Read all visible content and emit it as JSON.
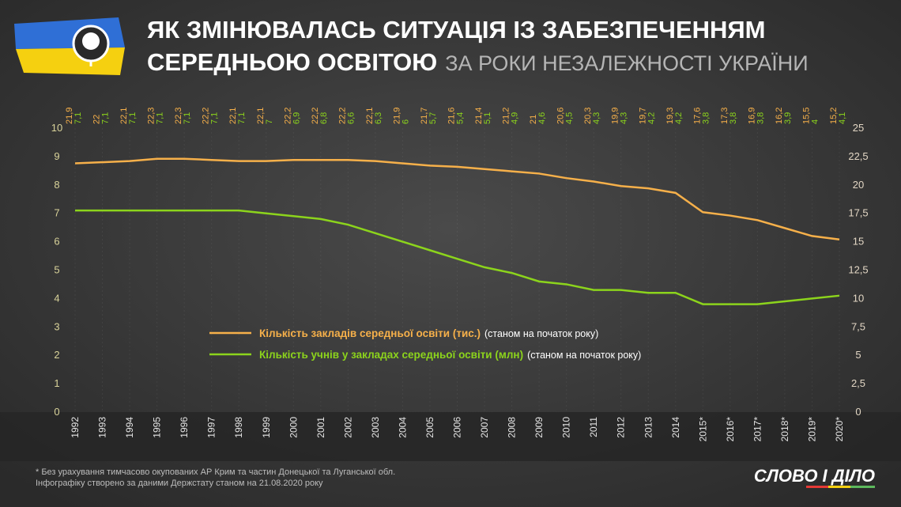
{
  "chart_data": {
    "type": "line",
    "title_lines": [
      "ЯК ЗМІНЮВАЛАСЬ СИТУАЦІЯ ІЗ ЗАБЕЗПЕЧЕННЯМ",
      "СЕРЕДНЬОЮ ОСВІТОЮ"
    ],
    "subtitle": "ЗА РОКИ НЕЗАЛЕЖНОСТІ УКРАЇНИ",
    "categories": [
      "1992",
      "1993",
      "1994",
      "1995",
      "1996",
      "1997",
      "1998",
      "1999",
      "2000",
      "2001",
      "2002",
      "2003",
      "2004",
      "2005",
      "2006",
      "2007",
      "2008",
      "2009",
      "2010",
      "2011",
      "2012",
      "2013",
      "2014",
      "2015*",
      "2016*",
      "2017*",
      "2018*",
      "2019*",
      "2020*"
    ],
    "series": [
      {
        "name": "Кількість закладів середньої освіти (тис.)",
        "note": "(станом на початок року)",
        "color": "#f6b04a",
        "axis": "y2",
        "values": [
          21.9,
          22,
          22.1,
          22.3,
          22.3,
          22.2,
          22.1,
          22.1,
          22.2,
          22.2,
          22.2,
          22.1,
          21.9,
          21.7,
          21.6,
          21.4,
          21.2,
          21,
          20.6,
          20.3,
          19.9,
          19.7,
          19.3,
          17.6,
          17.3,
          16.9,
          16.2,
          15.5,
          15.2
        ],
        "value_labels": [
          "21,9",
          "22",
          "22,1",
          "22,3",
          "22,3",
          "22,2",
          "22,1",
          "22,1",
          "22,2",
          "22,2",
          "22,2",
          "22,1",
          "21,9",
          "21,7",
          "21,6",
          "21,4",
          "21,2",
          "21",
          "20,6",
          "20,3",
          "19,9",
          "19,7",
          "19,3",
          "17,6",
          "17,3",
          "16,9",
          "16,2",
          "15,5",
          "15,2"
        ]
      },
      {
        "name": "Кількість учнів у закладах середньої освіти (млн)",
        "note": "(станом на початок року)",
        "color": "#8cd41c",
        "values": [
          7.1,
          7.1,
          7.1,
          7.1,
          7.1,
          7.1,
          7.1,
          7,
          6.9,
          6.8,
          6.6,
          6.3,
          6,
          5.7,
          5.4,
          5.1,
          4.9,
          4.6,
          4.5,
          4.3,
          4.3,
          4.2,
          4.2,
          3.8,
          3.8,
          3.8,
          3.9,
          4,
          4.1
        ],
        "value_labels": [
          "7,1",
          "7,1",
          "7,1",
          "7,1",
          "7,1",
          "7,1",
          "7,1",
          "7",
          "6,9",
          "6,8",
          "6,6",
          "6,3",
          "6",
          "5,7",
          "5,4",
          "5,1",
          "4,9",
          "4,6",
          "4,5",
          "4,3",
          "4,3",
          "4,2",
          "4,2",
          "3,8",
          "3,8",
          "3,8",
          "3,9",
          "4",
          "4,1"
        ]
      }
    ],
    "ylim": [
      0,
      10
    ],
    "yticks": [
      0,
      1,
      2,
      3,
      4,
      5,
      6,
      7,
      8,
      9,
      10
    ],
    "y2lim": [
      0,
      25
    ],
    "y2ticks": [
      0,
      {
        "value": 2.5,
        "label": "2,5"
      },
      5,
      {
        "value": 7.5,
        "label": "7,5"
      },
      10,
      {
        "value": 12.5,
        "label": "12,5"
      },
      15,
      {
        "value": 17.5,
        "label": "17,5"
      },
      20,
      {
        "value": 22.5,
        "label": "22,5"
      },
      25
    ],
    "footnotes": [
      "* Без урахування тимчасово окупованих АР Крим та частин Донецької та Луганської обл.",
      "Інфографіку створено за даними Держстату станом на 21.08.2020 року"
    ],
    "brand": "СЛОВО І ДІЛО"
  }
}
